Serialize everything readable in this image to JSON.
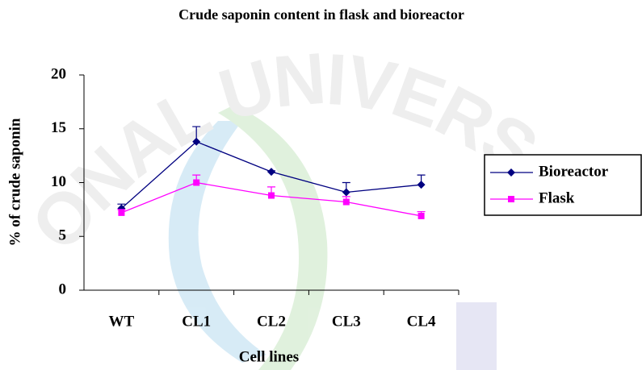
{
  "watermark": "ONAL UNIVERS",
  "chart_data": {
    "type": "line",
    "title": "Crude saponin content in flask and bioreactor",
    "x_label": "Cell lines",
    "y_label": "% of crude saponin",
    "categories": [
      "WT",
      "CL1",
      "CL2",
      "CL3",
      "CL4"
    ],
    "series": [
      {
        "name": "Bioreactor",
        "color": "#000080",
        "values": [
          7.6,
          13.8,
          11.0,
          9.1,
          9.8
        ],
        "errors": [
          0.4,
          1.4,
          0.1,
          0.9,
          0.9
        ]
      },
      {
        "name": "Flask",
        "color": "#ff00ff",
        "values": [
          7.2,
          10.0,
          8.8,
          8.2,
          6.9
        ],
        "errors": [
          0.3,
          0.7,
          0.8,
          0.5,
          0.4
        ]
      }
    ],
    "ylim": [
      0,
      20
    ],
    "yticks": [
      0,
      5,
      10,
      15,
      20
    ],
    "legend": "right"
  }
}
